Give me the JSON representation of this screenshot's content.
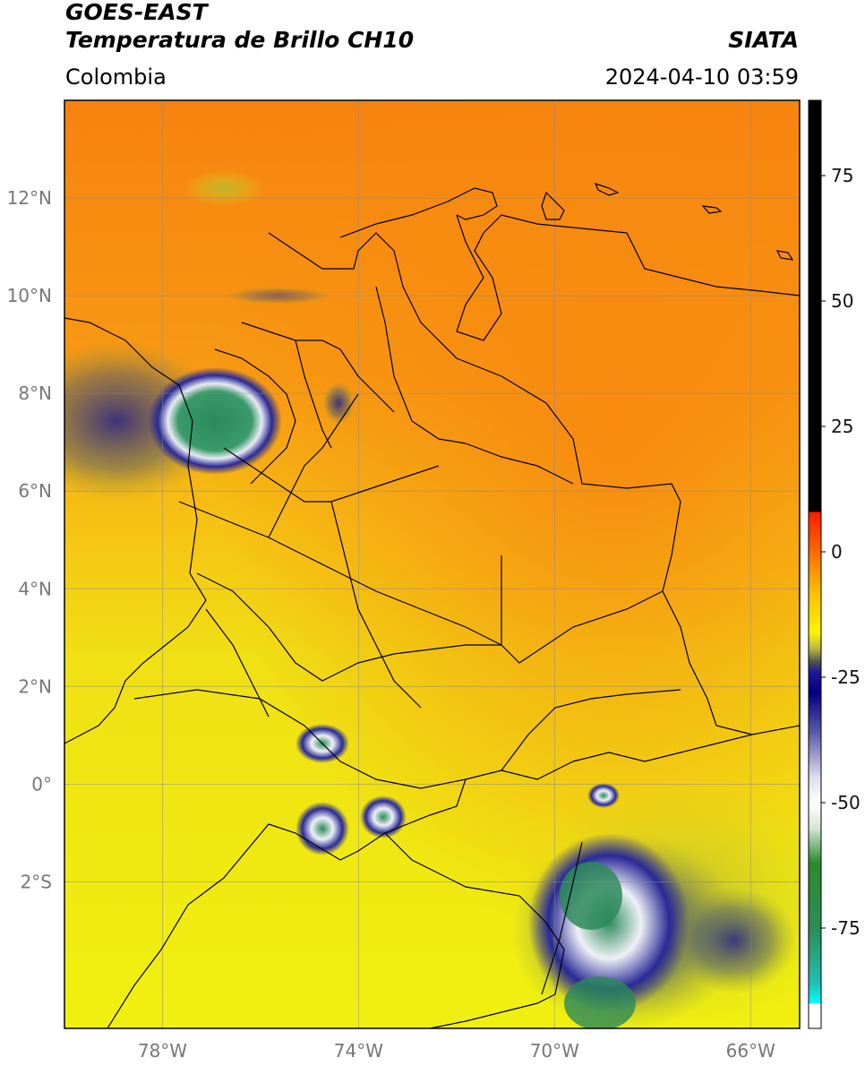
{
  "header": {
    "line1": "GOES-EAST",
    "line2": "Temperatura de Brillo CH10",
    "organization": "SIATA",
    "region": "Colombia",
    "timestamp": "2024-04-10 03:59"
  },
  "map": {
    "lon_range": [
      -80,
      -65
    ],
    "lat_range": [
      -5,
      14
    ],
    "lon_ticks": [
      {
        "value": -78,
        "label": "78°W"
      },
      {
        "value": -74,
        "label": "74°W"
      },
      {
        "value": -70,
        "label": "70°W"
      },
      {
        "value": -66,
        "label": "66°W"
      }
    ],
    "lat_ticks": [
      {
        "value": 12,
        "label": "12°N"
      },
      {
        "value": 10,
        "label": "10°N"
      },
      {
        "value": 8,
        "label": "8°N"
      },
      {
        "value": 6,
        "label": "6°N"
      },
      {
        "value": 4,
        "label": "4°N"
      },
      {
        "value": 2,
        "label": "2°N"
      },
      {
        "value": 0,
        "label": "0°"
      },
      {
        "value": -2,
        "label": "2°S"
      }
    ],
    "colors": {
      "warm": "#f7860f",
      "mid": "#f6c114",
      "cool": "#f0ec10",
      "cloud_blue": "#1e1e8c",
      "cloud_white": "#e8eaf2",
      "cloud_green": "#2b8a5a"
    }
  },
  "colorbar": {
    "range": [
      -95,
      90
    ],
    "ticks": [
      {
        "value": 75,
        "label": "75"
      },
      {
        "value": 50,
        "label": "50"
      },
      {
        "value": 25,
        "label": "25"
      },
      {
        "value": 0,
        "label": "0"
      },
      {
        "value": -25,
        "label": "-25"
      },
      {
        "value": -50,
        "label": "-50"
      },
      {
        "value": -75,
        "label": "-75"
      }
    ],
    "stops": [
      {
        "value": 90,
        "color": "#000000"
      },
      {
        "value": 8,
        "color": "#000000"
      },
      {
        "value": 7.9,
        "color": "#ff1a00"
      },
      {
        "value": 0,
        "color": "#ff6a00"
      },
      {
        "value": -8,
        "color": "#ffbf00"
      },
      {
        "value": -16,
        "color": "#fff200"
      },
      {
        "value": -19,
        "color": "#c0c040"
      },
      {
        "value": -22,
        "color": "#505050"
      },
      {
        "value": -24,
        "color": "#1a1a9a"
      },
      {
        "value": -28,
        "color": "#000080"
      },
      {
        "value": -36,
        "color": "#5a5aa8"
      },
      {
        "value": -45,
        "color": "#ddddee"
      },
      {
        "value": -50,
        "color": "#ffffff"
      },
      {
        "value": -55,
        "color": "#d6e6d6"
      },
      {
        "value": -62,
        "color": "#2e8b2e"
      },
      {
        "value": -75,
        "color": "#2e8b57"
      },
      {
        "value": -86,
        "color": "#20c0b0"
      },
      {
        "value": -90,
        "color": "#00ffff"
      },
      {
        "value": -90.1,
        "color": "#ffffff"
      },
      {
        "value": -95,
        "color": "#ffffff"
      }
    ]
  }
}
